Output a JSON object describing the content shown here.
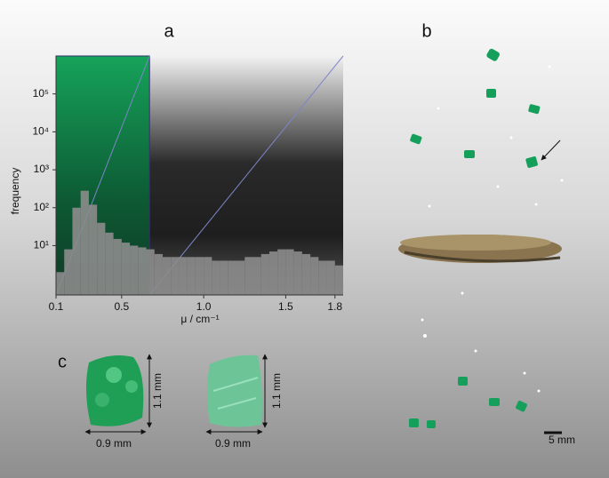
{
  "chart_data": {
    "type": "histogram",
    "x_label": "μ / cm⁻¹",
    "y_label": "frequency",
    "bins": [
      0.1,
      0.15,
      0.2,
      0.25,
      0.3,
      0.35,
      0.4,
      0.45,
      0.5,
      0.55,
      0.6,
      0.65,
      0.7,
      0.75,
      0.8,
      0.85,
      0.9,
      0.95,
      1.0,
      1.05,
      1.1,
      1.15,
      1.2,
      1.25,
      1.3,
      1.35,
      1.4,
      1.45,
      1.5,
      1.55,
      1.6,
      1.65,
      1.7,
      1.75,
      1.8,
      1.85
    ],
    "counts": [
      2,
      8,
      100,
      280,
      120,
      40,
      22,
      15,
      12,
      10,
      9,
      8,
      6,
      5,
      5,
      5,
      5,
      5,
      5,
      4,
      4,
      4,
      4,
      5,
      5,
      6,
      7,
      8,
      8,
      7,
      6,
      5,
      4,
      4,
      3
    ],
    "color": "#8c8c8c",
    "log_y": true,
    "xlim": [
      0.1,
      1.85
    ],
    "xticks": [
      0.1,
      0.5,
      {
        "value": 1,
        "label": "1.0"
      },
      1.5,
      1.8
    ],
    "ylim": [
      0.5,
      1000000
    ],
    "yticks": [
      {
        "value": 10,
        "label": "10¹"
      },
      {
        "value": 100,
        "label": "10²"
      },
      {
        "value": 1000,
        "label": "10³"
      },
      {
        "value": 10000,
        "label": "10⁴"
      },
      {
        "value": 100000,
        "label": "10⁵"
      }
    ],
    "selection": {
      "range": [
        0.1,
        0.67
      ],
      "color": "#16a35a"
    }
  },
  "panel_labels": [
    "a",
    "b",
    "c"
  ],
  "scale_bar": "5 mm",
  "crystals": [
    {
      "height": "1.1 mm",
      "width": "0.9 mm"
    },
    {
      "height": "1.1 mm",
      "width": "0.9 mm"
    }
  ]
}
